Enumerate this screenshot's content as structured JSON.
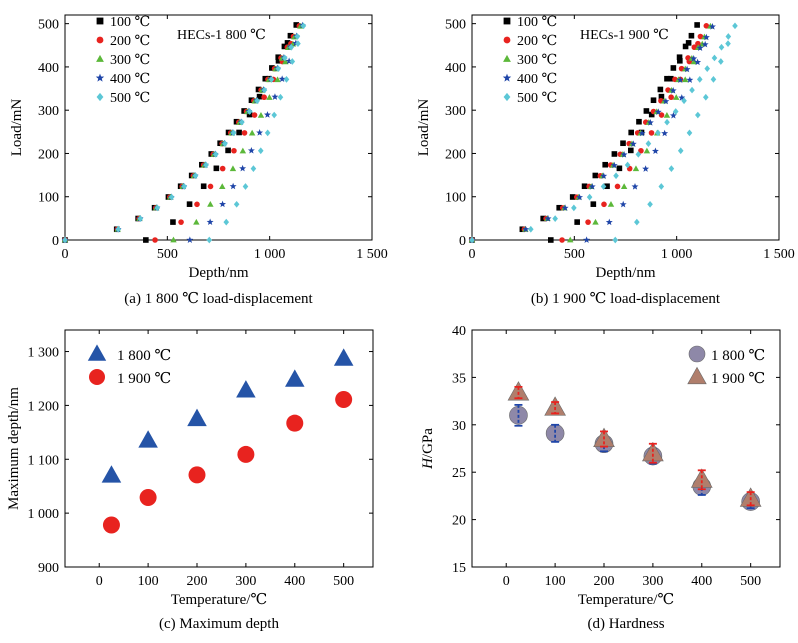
{
  "colors": {
    "s100": "#000000",
    "s200": "#e8231f",
    "s300": "#5cb83a",
    "s400": "#1f45a8",
    "s500": "#5cc7d6",
    "blue_triangle": "#2554a7",
    "red_circle": "#e8231f",
    "grey_circle": "#8e88a8",
    "brown_triangle": "#b07e6c",
    "err_red": "#e8231f",
    "err_blue": "#1f45a8"
  },
  "chart_data": [
    {
      "id": "a",
      "type": "scatter",
      "caption": "(a) 1 800 ℃ load-displacement",
      "annotation": "HECs-1 800 ℃",
      "xlabel": "Depth/nm",
      "ylabel": "Load/mN",
      "xlim": [
        0,
        1500
      ],
      "ylim": [
        0,
        520
      ],
      "xticks": [
        0,
        500,
        1000,
        1500
      ],
      "xtick_labels": [
        "0",
        "500",
        "1 000",
        "1 500"
      ],
      "yticks": [
        0,
        100,
        200,
        300,
        400,
        500
      ],
      "ytick_labels": [
        "0",
        "100",
        "200",
        "300",
        "400",
        "500"
      ],
      "legend_position": "top-left",
      "series": [
        {
          "name": "100 ℃",
          "marker": "square",
          "color": "s100",
          "max_depth": 1130,
          "residual": 395,
          "max_load": 497
        },
        {
          "name": "200 ℃",
          "marker": "circle",
          "color": "s200",
          "max_depth": 1145,
          "residual": 440,
          "max_load": 495
        },
        {
          "name": "300 ℃",
          "marker": "triangle",
          "color": "s300",
          "max_depth": 1150,
          "residual": 530,
          "max_load": 494
        },
        {
          "name": "400 ℃",
          "marker": "star",
          "color": "s400",
          "max_depth": 1160,
          "residual": 610,
          "max_load": 496
        },
        {
          "name": "500 ℃",
          "marker": "diamond",
          "color": "s500",
          "max_depth": 1165,
          "residual": 705,
          "max_load": 495
        }
      ]
    },
    {
      "id": "b",
      "type": "scatter",
      "caption": "(b) 1 900 ℃ load-displacement",
      "annotation": "HECs-1 900 ℃",
      "xlabel": "Depth/nm",
      "ylabel": "Load/mN",
      "xlim": [
        0,
        1500
      ],
      "ylim": [
        0,
        520
      ],
      "xticks": [
        0,
        500,
        1000,
        1500
      ],
      "xtick_labels": [
        "0",
        "500",
        "1 000",
        "1 500"
      ],
      "yticks": [
        0,
        100,
        200,
        300,
        400,
        500
      ],
      "ytick_labels": [
        "0",
        "100",
        "200",
        "300",
        "400",
        "500"
      ],
      "legend_position": "top-left",
      "series": [
        {
          "name": "100 ℃",
          "marker": "square",
          "color": "s100",
          "max_depth": 1100,
          "residual": 385,
          "max_load": 497
        },
        {
          "name": "200 ℃",
          "marker": "circle",
          "color": "s200",
          "max_depth": 1145,
          "residual": 440,
          "max_load": 495
        },
        {
          "name": "300 ℃",
          "marker": "triangle",
          "color": "s300",
          "max_depth": 1165,
          "residual": 480,
          "max_load": 494
        },
        {
          "name": "400 ℃",
          "marker": "star",
          "color": "s400",
          "max_depth": 1175,
          "residual": 560,
          "max_load": 493
        },
        {
          "name": "500 ℃",
          "marker": "diamond",
          "color": "s500",
          "max_depth": 1285,
          "residual": 700,
          "max_load": 495
        }
      ]
    },
    {
      "id": "c",
      "type": "scatter",
      "caption": "(c) Maximum depth",
      "xlabel": "Temperature/℃",
      "ylabel": "Maximum depth/nm",
      "xlim": [
        -70,
        560
      ],
      "ylim": [
        900,
        1340
      ],
      "xticks": [
        0,
        100,
        200,
        300,
        400,
        500
      ],
      "xtick_labels": [
        "0",
        "100",
        "200",
        "300",
        "400",
        "500"
      ],
      "yticks": [
        900,
        1000,
        1100,
        1200,
        1300
      ],
      "ytick_labels": [
        "900",
        "1 000",
        "1 100",
        "1 200",
        "1 300"
      ],
      "legend_position": "top-left",
      "x": [
        25,
        100,
        200,
        300,
        400,
        500
      ],
      "series": [
        {
          "name": "1 800 ℃",
          "marker": "triangle",
          "color": "blue_triangle",
          "values": [
            1070,
            1135,
            1175,
            1228,
            1248,
            1287
          ]
        },
        {
          "name": "1 900 ℃",
          "marker": "circle",
          "color": "red_circle",
          "values": [
            978,
            1029,
            1071,
            1109,
            1167,
            1211
          ]
        }
      ]
    },
    {
      "id": "d",
      "type": "scatter",
      "caption": "(d) Hardness",
      "xlabel": "Temperature/℃",
      "ylabel_italic": "H",
      "ylabel_rest": "/GPa",
      "xlim": [
        -70,
        560
      ],
      "ylim": [
        15,
        40
      ],
      "xticks": [
        0,
        100,
        200,
        300,
        400,
        500
      ],
      "xtick_labels": [
        "0",
        "100",
        "200",
        "300",
        "400",
        "500"
      ],
      "yticks": [
        15,
        20,
        25,
        30,
        35,
        40
      ],
      "ytick_labels": [
        "15",
        "20",
        "25",
        "30",
        "35",
        "40"
      ],
      "legend_position": "top-right",
      "x": [
        25,
        100,
        200,
        300,
        400,
        500
      ],
      "series": [
        {
          "name": "1 800 ℃",
          "marker": "circle",
          "color": "grey_circle",
          "values": [
            31.0,
            29.1,
            28.0,
            26.7,
            23.5,
            21.9
          ],
          "errors": [
            1.1,
            0.9,
            0.8,
            0.8,
            0.9,
            0.7
          ]
        },
        {
          "name": "1 900 ℃",
          "marker": "triangle",
          "color": "brown_triangle",
          "values": [
            33.4,
            31.8,
            28.5,
            27.0,
            24.2,
            22.2
          ],
          "errors": [
            0.6,
            0.6,
            0.8,
            1.0,
            1.0,
            0.7
          ]
        }
      ]
    }
  ]
}
